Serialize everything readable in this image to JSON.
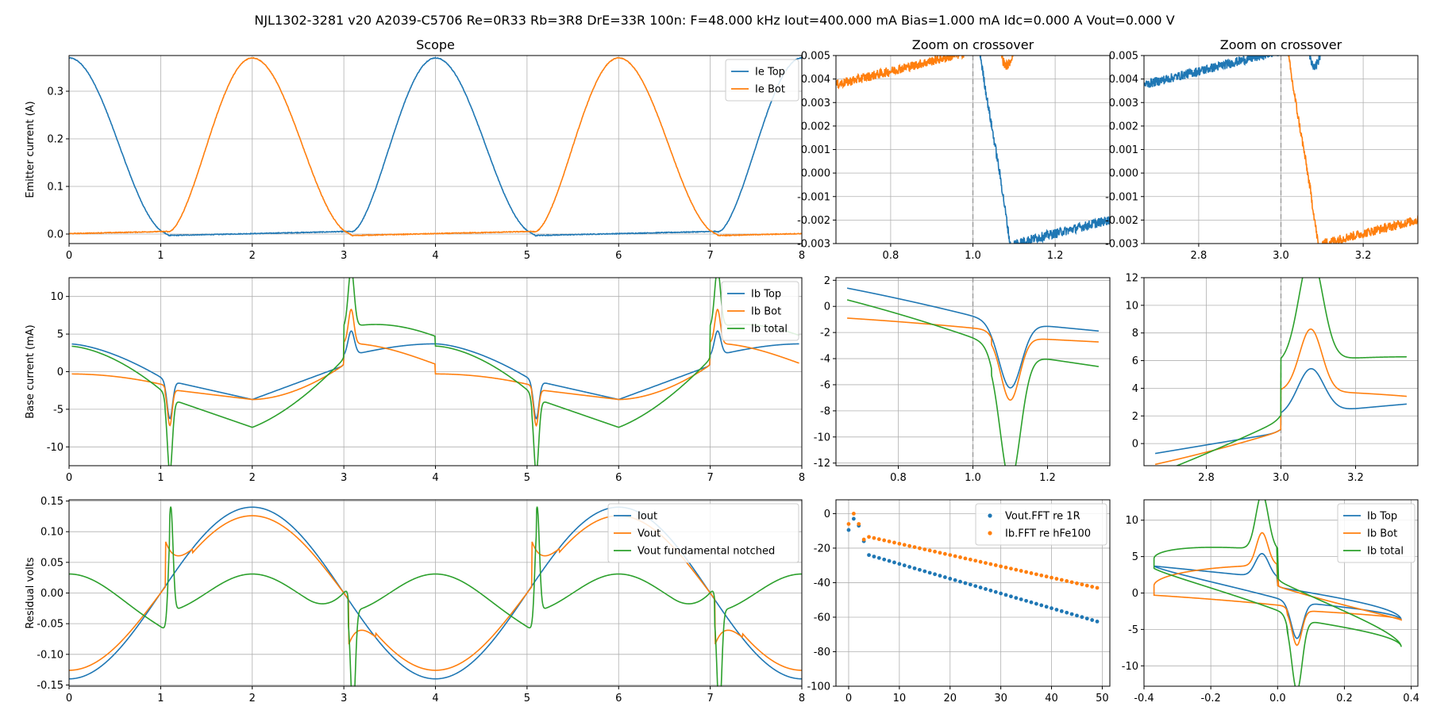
{
  "figure_title": "NJL1302-3281 v20 A2039-C5706 Re=0R33 Rb=3R8 DrE=33R 100n: F=48.000 kHz Iout=400.000 mA Bias=1.000 mA Idc=0.000 A Vout=0.000 V",
  "colors": {
    "blue": "#1f77b4",
    "orange": "#ff7f0e",
    "green": "#2ca02c",
    "dashed": "#999999"
  },
  "chart_data": [
    {
      "id": "emitter",
      "type": "line",
      "title": "Scope",
      "ylabel": "Emitter current (A)",
      "xlim": [
        0,
        8
      ],
      "ylim": [
        -0.02,
        0.375
      ],
      "xticks": [
        "0",
        "1",
        "2",
        "3",
        "4",
        "5",
        "6",
        "7",
        "8"
      ],
      "yticks": [
        "0.0",
        "0.1",
        "0.2",
        "0.3"
      ],
      "legend": "top-right",
      "series": [
        {
          "name": "Ie Top",
          "color": "blue"
        },
        {
          "name": "Ie Bot",
          "color": "orange"
        }
      ]
    },
    {
      "id": "zoom1",
      "type": "line",
      "title": "Zoom on crossover",
      "xlim": [
        0.667,
        1.333
      ],
      "ylim": [
        -0.003,
        0.005
      ],
      "xticks": [
        "0.8",
        "1.0",
        "1.2"
      ],
      "yticks": [
        "-0.003",
        "-0.002",
        "-0.001",
        "0.000",
        "0.001",
        "0.002",
        "0.003",
        "0.004",
        "0.005"
      ],
      "vline": 1.0
    },
    {
      "id": "zoom2",
      "type": "line",
      "title": "Zoom on crossover",
      "xlim": [
        2.667,
        3.333
      ],
      "ylim": [
        -0.003,
        0.005
      ],
      "xticks": [
        "2.8",
        "3.0",
        "3.2"
      ],
      "yticks": [
        "-0.003",
        "-0.002",
        "-0.001",
        "0.000",
        "0.001",
        "0.002",
        "0.003",
        "0.004",
        "0.005"
      ],
      "vline": 3.0
    },
    {
      "id": "base",
      "type": "line",
      "ylabel": "Base current (mA)",
      "xlim": [
        0,
        8
      ],
      "ylim": [
        -12.5,
        12.5
      ],
      "xticks": [
        "0",
        "1",
        "2",
        "3",
        "4",
        "5",
        "6",
        "7",
        "8"
      ],
      "yticks": [
        "-10",
        "-5",
        "0",
        "5",
        "10"
      ],
      "legend": "top-right",
      "series": [
        {
          "name": "Ib Top",
          "color": "blue"
        },
        {
          "name": "Ib Bot",
          "color": "orange"
        },
        {
          "name": "Ib total",
          "color": "green"
        }
      ]
    },
    {
      "id": "base_zoom1",
      "type": "line",
      "xlim": [
        0.633,
        1.367
      ],
      "ylim": [
        -12.2,
        2.2
      ],
      "xticks": [
        "0.8",
        "1.0",
        "1.2"
      ],
      "yticks": [
        "-12",
        "-10",
        "-8",
        "-6",
        "-4",
        "-2",
        "0",
        "2"
      ],
      "vline": 1.0
    },
    {
      "id": "base_zoom2",
      "type": "line",
      "xlim": [
        2.633,
        3.367
      ],
      "ylim": [
        -1.6,
        12.0
      ],
      "xticks": [
        "2.8",
        "3.0",
        "3.2"
      ],
      "yticks": [
        "0",
        "2",
        "4",
        "6",
        "8",
        "10",
        "12"
      ],
      "vline": 3.0
    },
    {
      "id": "residual",
      "type": "line",
      "ylabel": "Residual volts",
      "xlim": [
        0,
        8
      ],
      "ylim": [
        -0.152,
        0.152
      ],
      "xticks": [
        "0",
        "1",
        "2",
        "3",
        "4",
        "5",
        "6",
        "7",
        "8"
      ],
      "yticks": [
        "-0.15",
        "-0.10",
        "-0.05",
        "0.00",
        "0.05",
        "0.10",
        "0.15"
      ],
      "legend": "top-right",
      "series": [
        {
          "name": "Iout",
          "color": "blue"
        },
        {
          "name": "Vout",
          "color": "orange"
        },
        {
          "name": "Vout fundamental notched",
          "color": "green"
        }
      ]
    },
    {
      "id": "fft",
      "type": "scatter",
      "xlim": [
        -2.5,
        51.5
      ],
      "ylim": [
        -100,
        8
      ],
      "xticks": [
        "0",
        "10",
        "20",
        "30",
        "40",
        "50"
      ],
      "yticks": [
        "-100",
        "-80",
        "-60",
        "-40",
        "-20",
        "0"
      ],
      "legend": "top-right",
      "series": [
        {
          "name": "Vout.FFT re 1R",
          "color": "blue",
          "first": [
            -9.5,
            -3,
            -7,
            -16
          ],
          "start_db": -24,
          "end_db": -62.5
        },
        {
          "name": "Ib.FFT re hFe100",
          "color": "orange",
          "first": [
            -6,
            0,
            -6,
            -15
          ],
          "start_db": -13.5,
          "end_db": -43
        }
      ]
    },
    {
      "id": "loop",
      "type": "line",
      "xlim": [
        -0.4,
        0.42
      ],
      "ylim": [
        -12.8,
        12.8
      ],
      "xticks": [
        "-0.4",
        "-0.2",
        "0.0",
        "0.2",
        "0.4"
      ],
      "yticks": [
        "-10",
        "-5",
        "0",
        "5",
        "10"
      ],
      "legend": "top-right",
      "series": [
        {
          "name": "Ib Top",
          "color": "blue"
        },
        {
          "name": "Ib Bot",
          "color": "orange"
        },
        {
          "name": "Ib total",
          "color": "green"
        }
      ]
    }
  ]
}
